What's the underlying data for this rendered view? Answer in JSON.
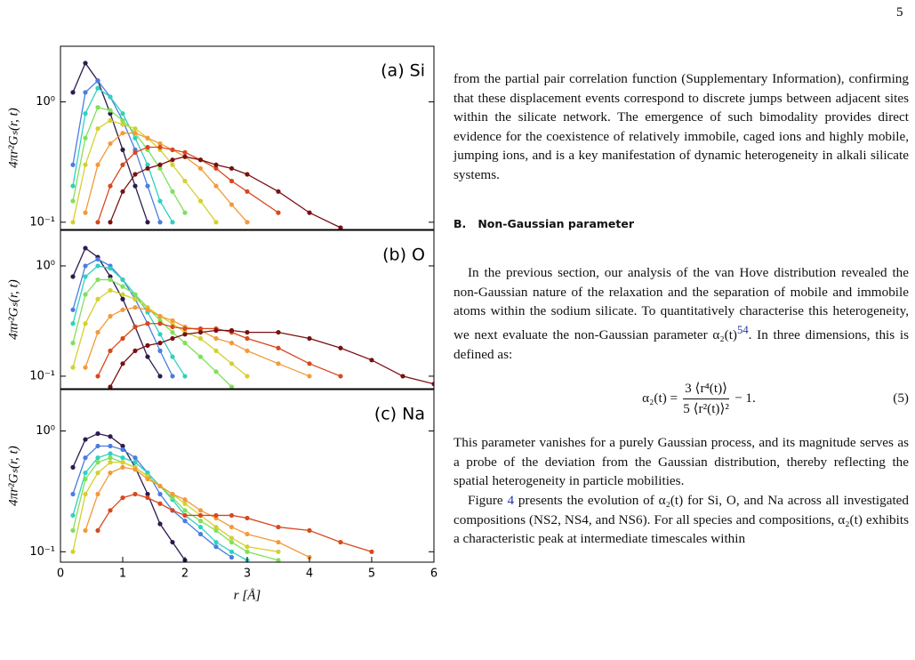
{
  "page_number": "5",
  "chart_data": [
    {
      "type": "line",
      "panel_label": "(a) Si",
      "ylabel": "4πr²Gₛ(r, t)",
      "log_y": true,
      "xlim": [
        0,
        6
      ],
      "ylim": [
        0.087,
        2.9
      ],
      "yticks": [
        {
          "value": 1,
          "label": "10⁰"
        },
        {
          "value": 0.1,
          "label": "10⁻¹"
        }
      ],
      "x": [
        0.2,
        0.4,
        0.6,
        0.8,
        1.0,
        1.2,
        1.4,
        1.6,
        1.8,
        2.0,
        2.25,
        2.5,
        2.75,
        3.0,
        3.5,
        4.0,
        4.5,
        5.0,
        5.5,
        6.0
      ],
      "series": [
        {
          "color": "#2d1b4e",
          "values": [
            1.2,
            2.1,
            1.5,
            0.8,
            0.4,
            0.2,
            0.1,
            null,
            null,
            null,
            null,
            null,
            null,
            null,
            null,
            null,
            null,
            null,
            null,
            null
          ]
        },
        {
          "color": "#4a7de0",
          "values": [
            0.3,
            1.2,
            1.5,
            1.1,
            0.7,
            0.4,
            0.2,
            0.1,
            null,
            null,
            null,
            null,
            null,
            null,
            null,
            null,
            null,
            null,
            null,
            null
          ]
        },
        {
          "color": "#2fd0c0",
          "values": [
            0.2,
            0.8,
            1.3,
            1.1,
            0.8,
            0.5,
            0.3,
            0.15,
            0.1,
            null,
            null,
            null,
            null,
            null,
            null,
            null,
            null,
            null,
            null,
            null
          ]
        },
        {
          "color": "#7fe05a",
          "values": [
            0.15,
            0.5,
            0.9,
            0.85,
            0.7,
            0.55,
            0.4,
            0.28,
            0.18,
            0.12,
            null,
            null,
            null,
            null,
            null,
            null,
            null,
            null,
            null,
            null
          ]
        },
        {
          "color": "#d4d030",
          "values": [
            0.1,
            0.3,
            0.6,
            0.7,
            0.65,
            0.6,
            0.5,
            0.4,
            0.3,
            0.22,
            0.15,
            0.1,
            null,
            null,
            null,
            null,
            null,
            null,
            null,
            null
          ]
        },
        {
          "color": "#f29a38",
          "values": [
            null,
            0.12,
            0.3,
            0.45,
            0.55,
            0.55,
            0.5,
            0.45,
            0.4,
            0.35,
            0.28,
            0.2,
            0.14,
            0.1,
            null,
            null,
            null,
            null,
            null,
            null
          ]
        },
        {
          "color": "#d8481e",
          "values": [
            null,
            null,
            0.1,
            0.2,
            0.3,
            0.38,
            0.42,
            0.42,
            0.4,
            0.38,
            0.33,
            0.28,
            0.22,
            0.18,
            0.12,
            null,
            null,
            null,
            null,
            null
          ]
        },
        {
          "color": "#7a1010",
          "values": [
            null,
            null,
            null,
            0.1,
            0.18,
            0.25,
            0.28,
            0.3,
            0.33,
            0.35,
            0.33,
            0.3,
            0.28,
            0.25,
            0.18,
            0.12,
            0.09,
            null,
            null,
            null
          ]
        }
      ]
    },
    {
      "type": "line",
      "panel_label": "(b) O",
      "ylabel": "4πr²Gₛ(r, t)",
      "log_y": true,
      "xlim": [
        0,
        6
      ],
      "ylim": [
        0.077,
        2.1
      ],
      "yticks": [
        {
          "value": 1,
          "label": "10⁰"
        },
        {
          "value": 0.1,
          "label": "10⁻¹"
        }
      ],
      "x": [
        0.2,
        0.4,
        0.6,
        0.8,
        1.0,
        1.2,
        1.4,
        1.6,
        1.8,
        2.0,
        2.25,
        2.5,
        2.75,
        3.0,
        3.5,
        4.0,
        4.5,
        5.0,
        5.5,
        6.0
      ],
      "series": [
        {
          "color": "#2d1b4e",
          "values": [
            0.8,
            1.45,
            1.2,
            0.8,
            0.5,
            0.28,
            0.15,
            0.1,
            null,
            null,
            null,
            null,
            null,
            null,
            null,
            null,
            null,
            null,
            null,
            null
          ]
        },
        {
          "color": "#4a7de0",
          "values": [
            0.4,
            1.0,
            1.15,
            1.0,
            0.75,
            0.5,
            0.3,
            0.17,
            0.1,
            null,
            null,
            null,
            null,
            null,
            null,
            null,
            null,
            null,
            null,
            null
          ]
        },
        {
          "color": "#2fd0c0",
          "values": [
            0.3,
            0.8,
            1.0,
            0.95,
            0.75,
            0.55,
            0.38,
            0.24,
            0.15,
            0.1,
            null,
            null,
            null,
            null,
            null,
            null,
            null,
            null,
            null,
            null
          ]
        },
        {
          "color": "#7fe05a",
          "values": [
            0.2,
            0.55,
            0.75,
            0.75,
            0.65,
            0.55,
            0.42,
            0.32,
            0.25,
            0.2,
            0.15,
            0.11,
            0.08,
            null,
            null,
            null,
            null,
            null,
            null,
            null
          ]
        },
        {
          "color": "#d4d030",
          "values": [
            0.12,
            0.3,
            0.5,
            0.6,
            0.55,
            0.5,
            0.42,
            0.35,
            0.3,
            0.25,
            0.22,
            0.17,
            0.13,
            0.1,
            null,
            null,
            null,
            null,
            null,
            null
          ]
        },
        {
          "color": "#f29a38",
          "values": [
            null,
            0.12,
            0.25,
            0.35,
            0.4,
            0.42,
            0.4,
            0.35,
            0.32,
            0.28,
            0.26,
            0.22,
            0.2,
            0.17,
            0.13,
            0.1,
            null,
            null,
            null,
            null
          ]
        },
        {
          "color": "#d8481e",
          "values": [
            null,
            null,
            0.1,
            0.17,
            0.22,
            0.28,
            0.3,
            0.3,
            0.28,
            0.27,
            0.27,
            0.27,
            0.25,
            0.22,
            0.18,
            0.13,
            0.1,
            null,
            null,
            null
          ]
        },
        {
          "color": "#7a1010",
          "values": [
            null,
            null,
            null,
            0.08,
            0.13,
            0.17,
            0.19,
            0.2,
            0.22,
            0.24,
            0.25,
            0.26,
            0.26,
            0.25,
            0.25,
            0.22,
            0.18,
            0.14,
            0.1,
            0.085
          ]
        }
      ]
    },
    {
      "type": "line",
      "panel_label": "(c) Na",
      "ylabel": "4πr²Gₛ(r, t)",
      "xlabel": "r [Å]",
      "log_y": true,
      "xlim": [
        0,
        6
      ],
      "ylim": [
        0.082,
        2.2
      ],
      "xticks": [
        0,
        1,
        2,
        3,
        4,
        5,
        6
      ],
      "yticks": [
        {
          "value": 1,
          "label": "10⁰"
        },
        {
          "value": 0.1,
          "label": "10⁻¹"
        }
      ],
      "x": [
        0.2,
        0.4,
        0.6,
        0.8,
        1.0,
        1.2,
        1.4,
        1.6,
        1.8,
        2.0,
        2.25,
        2.5,
        2.75,
        3.0,
        3.5,
        4.0,
        4.5,
        5.0,
        5.5,
        6.0
      ],
      "series": [
        {
          "color": "#2d1b4e",
          "values": [
            0.5,
            0.85,
            0.95,
            0.9,
            0.75,
            0.5,
            0.3,
            0.17,
            0.12,
            0.085,
            null,
            null,
            null,
            null,
            null,
            null,
            null,
            null,
            null,
            null
          ]
        },
        {
          "color": "#4a7de0",
          "values": [
            0.3,
            0.6,
            0.75,
            0.75,
            0.7,
            0.6,
            0.45,
            0.3,
            0.22,
            0.18,
            0.14,
            0.11,
            0.09,
            null,
            null,
            null,
            null,
            null,
            null,
            null
          ]
        },
        {
          "color": "#2fd0c0",
          "values": [
            0.2,
            0.45,
            0.6,
            0.65,
            0.6,
            0.55,
            0.45,
            0.35,
            0.27,
            0.2,
            0.16,
            0.12,
            0.1,
            0.085,
            null,
            null,
            null,
            null,
            null,
            null
          ]
        },
        {
          "color": "#7fe05a",
          "values": [
            0.15,
            0.4,
            0.55,
            0.6,
            0.55,
            0.5,
            0.42,
            0.35,
            0.28,
            0.22,
            0.18,
            0.15,
            0.12,
            0.1,
            0.085,
            null,
            null,
            null,
            null,
            null
          ]
        },
        {
          "color": "#d4d030",
          "values": [
            0.1,
            0.3,
            0.45,
            0.55,
            0.55,
            0.5,
            0.42,
            0.35,
            0.3,
            0.25,
            0.2,
            0.16,
            0.13,
            0.11,
            0.1,
            null,
            null,
            null,
            null,
            null
          ]
        },
        {
          "color": "#f29a38",
          "values": [
            null,
            0.15,
            0.3,
            0.45,
            0.5,
            0.48,
            0.4,
            0.35,
            0.3,
            0.27,
            0.22,
            0.19,
            0.16,
            0.14,
            0.12,
            0.09,
            null,
            null,
            null,
            null
          ]
        },
        {
          "color": "#d8481e",
          "values": [
            null,
            null,
            0.15,
            0.22,
            0.28,
            0.3,
            0.28,
            0.25,
            0.22,
            0.2,
            0.2,
            0.2,
            0.2,
            0.19,
            0.16,
            0.15,
            0.12,
            0.1,
            null,
            null
          ]
        }
      ]
    }
  ],
  "text": {
    "p1": "from the partial pair correlation function (Supplementary Information), confirming that these displacement events correspond to discrete jumps between adjacent sites within the silicate network. The emergence of such bimodality provides direct evidence for the coexistence of relatively immobile, caged ions and highly mobile, jumping ions, and is a key manifestation of dynamic heterogeneity in alkali silicate systems.",
    "section": "B.   Non-Gaussian parameter",
    "p2a": "In the previous section, our analysis of the van Hove distribution revealed the non-Gaussian nature of the relaxation and the separation of mobile and immobile atoms within the sodium silicate. To quantitatively characterise this heterogeneity, we next evaluate the non-Gaussian parameter α₂(t)",
    "p2cite": "54",
    "p2b": ". In three dimensions, this is defined as:",
    "eq_lhs": "α₂(t) =",
    "eq_num": "3 ⟨r⁴(t)⟩",
    "eq_den": "5 ⟨r²(t)⟩²",
    "eq_rhs": "− 1.",
    "eq_no": "(5)",
    "p3": "This parameter vanishes for a purely Gaussian process, and its magnitude serves as a probe of the deviation from the Gaussian distribution, thereby reflecting the spatial heterogeneity in particle mobilities.",
    "p4a": "Figure ",
    "p4ref": "4",
    "p4b": " presents the evolution of α₂(t) for Si, O, and Na across all investigated compositions (NS2, NS4, and NS6). For all species and compositions, α₂(t) exhibits a characteristic peak at intermediate timescales within"
  }
}
